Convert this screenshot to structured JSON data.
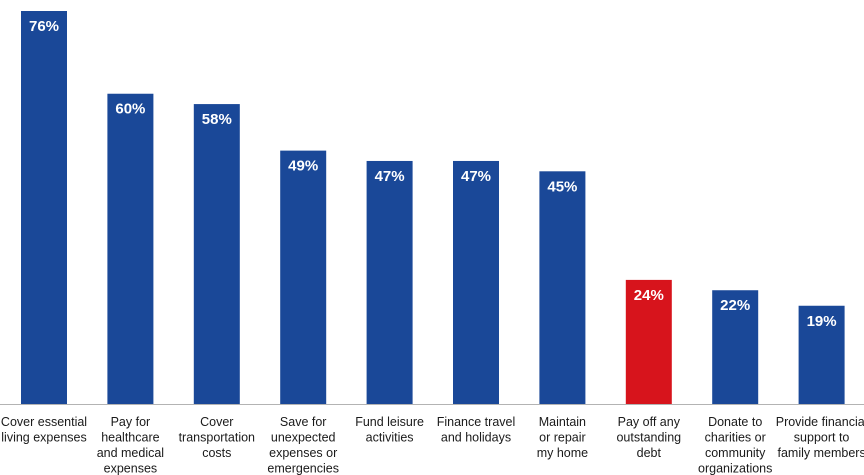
{
  "chart_data": {
    "type": "bar",
    "title": "",
    "xlabel": "",
    "ylabel": "",
    "ylim": [
      0,
      80
    ],
    "grid": false,
    "legend": "none",
    "value_suffix": "%",
    "colors": {
      "default": "#1a4898",
      "highlight": "#d7141c",
      "baseline": "#b3b3b3"
    },
    "highlight_index": 7,
    "categories": [
      [
        "Cover essential",
        "living expenses"
      ],
      [
        "Pay for",
        "healthcare",
        "and medical",
        "expenses"
      ],
      [
        "Cover",
        "transportation",
        "costs"
      ],
      [
        "Save for",
        "unexpected",
        "expenses or",
        "emergencies"
      ],
      [
        "Fund leisure",
        "activities"
      ],
      [
        "Finance travel",
        "and holidays"
      ],
      [
        "Maintain",
        "or repair",
        "my home"
      ],
      [
        "Pay off any",
        "outstanding",
        "debt"
      ],
      [
        "Donate to",
        "charities or",
        "community",
        "organizations"
      ],
      [
        "Provide financial",
        "support to",
        "family members"
      ]
    ],
    "values": [
      76,
      60,
      58,
      49,
      47,
      47,
      45,
      24,
      22,
      19
    ]
  }
}
